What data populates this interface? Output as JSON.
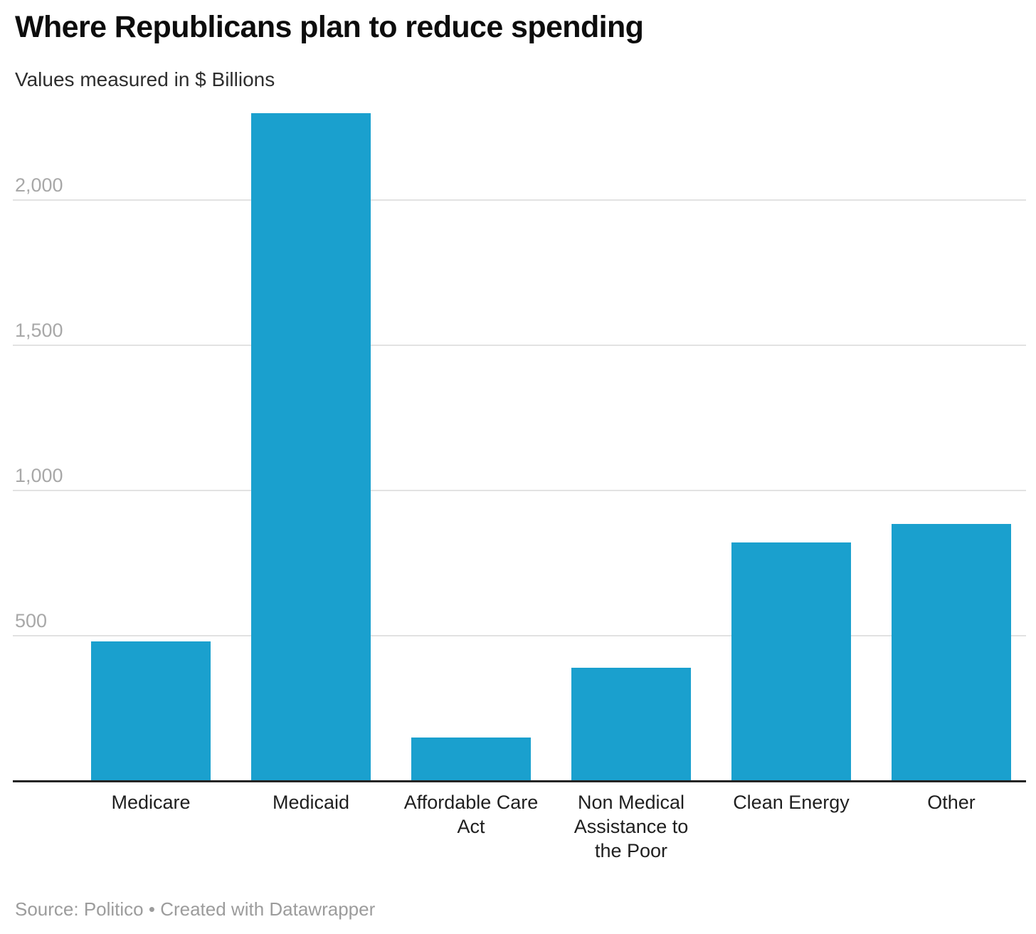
{
  "header": {
    "title": "Where Republicans plan to reduce spending",
    "subtitle": "Values measured in $ Billions"
  },
  "footer": {
    "text": "Source: Politico • Created with Datawrapper"
  },
  "colors": {
    "bar": "#1aa0ce",
    "gridline": "#e2e2e2",
    "axis_line": "#242424",
    "y_tick_label": "#a8a8a8",
    "x_label": "#1f1f1f",
    "title": "#0d0d0d",
    "subtitle": "#2e2e2e",
    "footer": "#9c9c9c",
    "background": "#ffffff"
  },
  "chart_data": {
    "type": "bar",
    "title": "Where Republicans plan to reduce spending",
    "subtitle": "Values measured in $ Billions",
    "source": "Politico",
    "tool": "Datawrapper",
    "categories": [
      "Medicare",
      "Medicaid",
      "Affordable Care Act",
      "Non Medical Assistance to the Poor",
      "Clean Energy",
      "Other"
    ],
    "category_label_lines": [
      [
        "Medicare"
      ],
      [
        "Medicaid"
      ],
      [
        "Affordable Care",
        "Act"
      ],
      [
        "Non Medical",
        "Assistance to",
        "the Poor"
      ],
      [
        "Clean Energy"
      ],
      [
        "Other"
      ]
    ],
    "values": [
      480,
      2300,
      150,
      390,
      820,
      885
    ],
    "unit": "$ Billions",
    "xlabel": "",
    "ylabel": "",
    "ylim": [
      0,
      2320
    ],
    "yticks": [
      500,
      1000,
      1500,
      2000
    ],
    "ytick_labels": [
      "500",
      "1,000",
      "1,500",
      "2,000"
    ],
    "grid": "horizontal",
    "legend": "none"
  }
}
